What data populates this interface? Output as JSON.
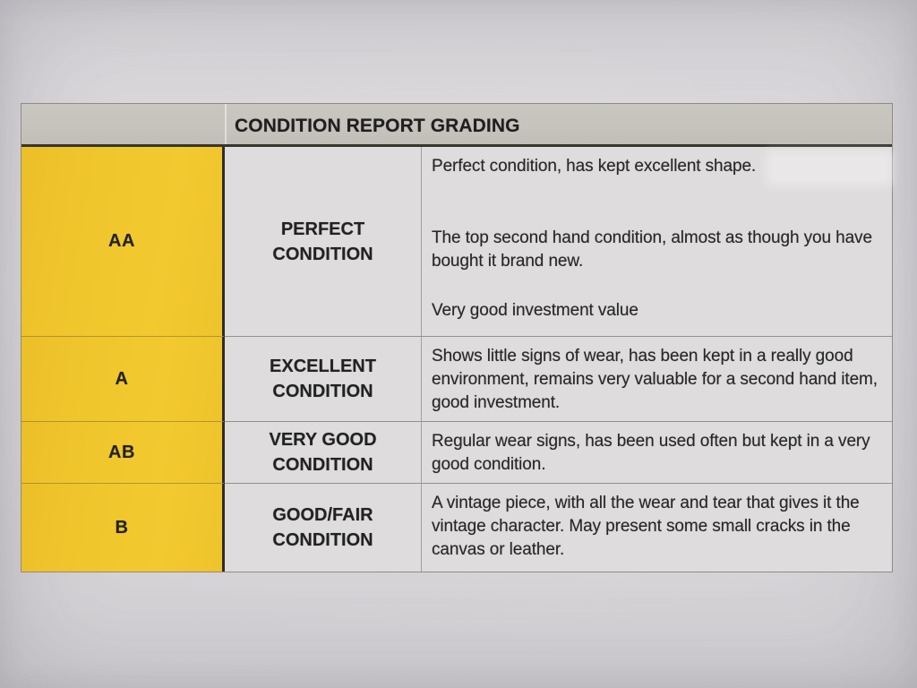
{
  "document": {
    "title": "CONDITION REPORT GRADING",
    "table": {
      "rows": [
        {
          "grade": "AA",
          "label": "PERFECT CONDITION",
          "label_lines": [
            "PERFECT",
            "CONDITION"
          ],
          "description_paragraphs": [
            "Perfect condition, has kept excellent shape.",
            "The top second hand condition, almost as though you have bought it brand new.",
            "Very good investment value"
          ]
        },
        {
          "grade": "A",
          "label": "EXCELLENT CONDITION",
          "label_lines": [
            "EXCELLENT",
            "CONDITION"
          ],
          "description_paragraphs": [
            "Shows little signs of wear, has been kept in a really good environment, remains very valuable for a second hand item, good investment."
          ]
        },
        {
          "grade": "AB",
          "label": "VERY GOOD CONDITION",
          "label_lines": [
            "VERY GOOD",
            "CONDITION"
          ],
          "description_paragraphs": [
            "Regular wear signs, has been used often but kept in a very good condition."
          ]
        },
        {
          "grade": "B",
          "label": "GOOD/FAIR CONDITION",
          "label_lines": [
            "GOOD/FAIR",
            "CONDITION"
          ],
          "description_paragraphs": [
            "A vintage piece, with all the wear and tear that gives it the vintage character. May present some small cracks in the canvas or leather."
          ]
        }
      ]
    },
    "colors": {
      "accent_yellow": "#f0c62d",
      "header_gray": "#c6c3bd",
      "cell_bg": "#dedcdd",
      "paper": "#d8d6d9",
      "text": "#272727"
    }
  }
}
